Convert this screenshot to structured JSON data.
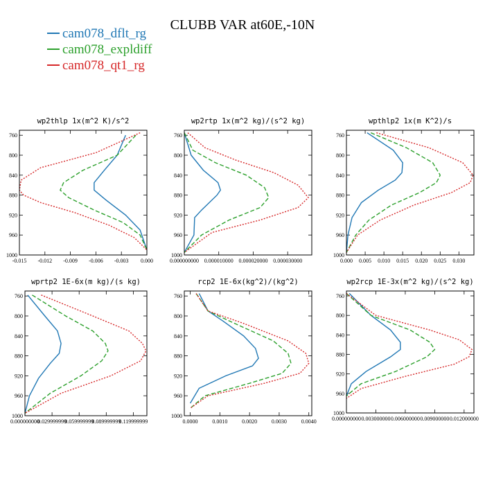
{
  "title": "CLUBB VAR at60E,-10N",
  "legend": [
    {
      "name": "cam078_dflt_rg",
      "color": "#1f77b4",
      "dash": "solid"
    },
    {
      "name": "cam078_expldiff",
      "color": "#2ca02c",
      "dash": "dashed"
    },
    {
      "name": "cam078_qt1_rg",
      "color": "#d62728",
      "dash": "dotted"
    }
  ],
  "chart_data": [
    {
      "type": "line",
      "title": "wp2thlp  1x(m^2 K)/s^2",
      "xlim": [
        -0.015,
        0.0
      ],
      "ylim": [
        1000,
        750
      ],
      "xticks": [
        -0.015,
        -0.012,
        -0.009,
        -0.006,
        -0.003,
        0.0
      ],
      "xtick_labels": [
        "-0.015",
        "-0.012",
        "-0.009",
        "-0.006",
        "-0.003",
        "0.000"
      ],
      "yticks": [
        760,
        800,
        840,
        880,
        920,
        960,
        1000
      ],
      "ytick_labels": [
        "760",
        "800",
        "840",
        "880",
        "920",
        "960",
        "1000"
      ],
      "series": [
        {
          "name": "cam078_dflt_rg",
          "x": [
            -0.0025,
            -0.0035,
            -0.005,
            -0.0062,
            -0.0062,
            -0.0048,
            -0.0025,
            -0.0008,
            0.0
          ],
          "y": [
            760,
            800,
            830,
            855,
            870,
            890,
            920,
            950,
            990
          ]
        },
        {
          "name": "cam078_expldiff",
          "x": [
            -0.0013,
            -0.0035,
            -0.0075,
            -0.0098,
            -0.0102,
            -0.0092,
            -0.0062,
            -0.0028,
            -0.0008,
            0.0
          ],
          "y": [
            760,
            800,
            830,
            855,
            870,
            885,
            910,
            935,
            960,
            990
          ]
        },
        {
          "name": "cam078_qt1_rg",
          "x": [
            -0.0008,
            -0.006,
            -0.0125,
            -0.0148,
            -0.015,
            -0.0145,
            -0.0125,
            -0.0085,
            -0.0045,
            -0.0015,
            0.0
          ],
          "y": [
            755,
            795,
            825,
            850,
            870,
            880,
            895,
            915,
            940,
            965,
            990
          ]
        }
      ]
    },
    {
      "type": "line",
      "title": "wp2rtp  1x(m^2 kg)/(s^2 kg)",
      "xlim": [
        0.0,
        3.7e-05
      ],
      "ylim": [
        1000,
        750
      ],
      "xticks": [
        0.0,
        1e-05,
        2e-05,
        3e-05
      ],
      "xtick_labels": [
        "0.000000000",
        "0.000010000",
        "0.000020000",
        "0.000030000"
      ],
      "yticks": [
        760,
        800,
        840,
        880,
        920,
        960,
        1000
      ],
      "ytick_labels": [
        "760",
        "800",
        "840",
        "880",
        "920",
        "960",
        "1000"
      ],
      "series": [
        {
          "name": "cam078_dflt_rg",
          "x": [
            0.0,
            2e-06,
            5.5e-06,
            9.8e-06,
            1.05e-05,
            9.5e-06,
            5e-06,
            3e-06,
            2.8e-06,
            0.0
          ],
          "y": [
            755,
            800,
            830,
            855,
            870,
            880,
            910,
            925,
            960,
            995
          ]
        },
        {
          "name": "cam078_expldiff",
          "x": [
            0.0,
            2.5e-06,
            9e-06,
            1.8e-05,
            2.33e-05,
            2.45e-05,
            2.2e-05,
            1.3e-05,
            5e-06,
            0.0
          ],
          "y": [
            755,
            790,
            815,
            840,
            865,
            885,
            905,
            930,
            960,
            995
          ]
        },
        {
          "name": "cam078_qt1_rg",
          "x": [
            1e-06,
            6e-06,
            1.5e-05,
            2.6e-05,
            3.3e-05,
            3.6e-05,
            3.3e-05,
            2.2e-05,
            8e-06,
            0.0
          ],
          "y": [
            755,
            785,
            810,
            835,
            860,
            885,
            905,
            930,
            955,
            995
          ]
        }
      ]
    },
    {
      "type": "line",
      "title": "wpthlp2  1x(m K^2)/s",
      "xlim": [
        0.0,
        0.034
      ],
      "ylim": [
        1000,
        750
      ],
      "xticks": [
        0.0,
        0.005,
        0.01,
        0.015,
        0.02,
        0.025,
        0.03
      ],
      "xtick_labels": [
        "0.000",
        "0.005",
        "0.010",
        "0.015",
        "0.020",
        "0.025",
        "0.030"
      ],
      "yticks": [
        760,
        800,
        840,
        880,
        920,
        960,
        1000
      ],
      "ytick_labels": [
        "760",
        "800",
        "840",
        "880",
        "920",
        "960",
        "1000"
      ],
      "series": [
        {
          "name": "cam078_dflt_rg",
          "x": [
            0.0055,
            0.0125,
            0.015,
            0.0148,
            0.013,
            0.0085,
            0.004,
            0.0015,
            0.0004,
            0.0
          ],
          "y": [
            755,
            790,
            815,
            835,
            850,
            870,
            895,
            925,
            960,
            995
          ]
        },
        {
          "name": "cam078_expldiff",
          "x": [
            0.0065,
            0.016,
            0.023,
            0.025,
            0.024,
            0.0195,
            0.012,
            0.006,
            0.0025,
            0.0
          ],
          "y": [
            755,
            785,
            815,
            840,
            855,
            875,
            900,
            930,
            960,
            995
          ]
        },
        {
          "name": "cam078_qt1_rg",
          "x": [
            0.008,
            0.022,
            0.031,
            0.0338,
            0.033,
            0.028,
            0.018,
            0.009,
            0.003,
            0.0
          ],
          "y": [
            755,
            785,
            815,
            840,
            855,
            875,
            900,
            930,
            960,
            995
          ]
        }
      ]
    },
    {
      "type": "line",
      "title": "wprtp2  1E-6x(m kg)/(s kg)",
      "xlim": [
        0.0,
        0.135
      ],
      "ylim": [
        1000,
        750
      ],
      "xticks": [
        0.0,
        0.03,
        0.06,
        0.09,
        0.12
      ],
      "xtick_labels": [
        "0.000000000",
        "0.029999999",
        "0.059999999",
        "0.089999999",
        "0.119999999"
      ],
      "yticks": [
        760,
        800,
        840,
        880,
        920,
        960,
        1000
      ],
      "ytick_labels": [
        "760",
        "800",
        "840",
        "880",
        "920",
        "960",
        "1000"
      ],
      "series": [
        {
          "name": "cam078_dflt_rg",
          "x": [
            0.003,
            0.022,
            0.036,
            0.04,
            0.038,
            0.028,
            0.015,
            0.005,
            0.0
          ],
          "y": [
            758,
            800,
            830,
            855,
            875,
            895,
            925,
            960,
            995
          ]
        },
        {
          "name": "cam078_expldiff",
          "x": [
            0.008,
            0.045,
            0.075,
            0.089,
            0.092,
            0.085,
            0.062,
            0.028,
            0.0
          ],
          "y": [
            758,
            800,
            830,
            855,
            870,
            890,
            920,
            955,
            995
          ]
        },
        {
          "name": "cam078_qt1_rg",
          "x": [
            0.018,
            0.075,
            0.115,
            0.13,
            0.134,
            0.128,
            0.095,
            0.04,
            0.0
          ],
          "y": [
            758,
            800,
            830,
            855,
            870,
            890,
            920,
            955,
            995
          ]
        }
      ]
    },
    {
      "type": "line",
      "title": "rcp2  1E-6x(kg^2)/(kg^2)",
      "xlim": [
        -0.0002,
        0.0041
      ],
      "ylim": [
        1000,
        750
      ],
      "xticks": [
        0.0,
        0.001,
        0.002,
        0.003,
        0.004
      ],
      "xtick_labels": [
        "0.0000",
        "0.0010",
        "0.0020",
        "0.0030",
        "0.0040"
      ],
      "yticks": [
        760,
        800,
        840,
        880,
        920,
        960,
        1000
      ],
      "ytick_labels": [
        "760",
        "800",
        "840",
        "880",
        "920",
        "960",
        "1000"
      ],
      "series": [
        {
          "name": "cam078_dflt_rg",
          "x": [
            0.0003,
            0.0006,
            0.0011,
            0.0018,
            0.0022,
            0.0023,
            0.0021,
            0.0012,
            0.0003,
            0.0
          ],
          "y": [
            755,
            790,
            810,
            840,
            865,
            885,
            900,
            920,
            945,
            975
          ]
        },
        {
          "name": "cam078_expldiff",
          "x": [
            0.0002,
            0.0006,
            0.0015,
            0.0028,
            0.0033,
            0.0034,
            0.0031,
            0.002,
            0.0005,
            0.0
          ],
          "y": [
            755,
            790,
            815,
            850,
            875,
            895,
            915,
            935,
            960,
            985
          ]
        },
        {
          "name": "cam078_qt1_rg",
          "x": [
            0.0002,
            0.0006,
            0.0018,
            0.0033,
            0.0039,
            0.004,
            0.0037,
            0.0025,
            0.0006,
            0.0
          ],
          "y": [
            755,
            790,
            815,
            850,
            875,
            895,
            915,
            935,
            960,
            985
          ]
        }
      ]
    },
    {
      "type": "line",
      "title": "wp2rcp  1E-3x(m^2 kg)/(s^2 kg)",
      "xlim": [
        0.0,
        0.013
      ],
      "ylim": [
        1000,
        750
      ],
      "xticks": [
        0.0,
        0.003,
        0.006,
        0.009,
        0.012
      ],
      "xtick_labels": [
        "0.000000000",
        "0.003000000",
        "0.006000000",
        "0.009000000",
        "0.012000000"
      ],
      "yticks": [
        760,
        800,
        840,
        880,
        920,
        960,
        1000
      ],
      "ytick_labels": [
        "760",
        "800",
        "840",
        "880",
        "920",
        "960",
        "1000"
      ],
      "series": [
        {
          "name": "cam078_dflt_rg",
          "x": [
            0.0003,
            0.0025,
            0.0045,
            0.0055,
            0.0055,
            0.0045,
            0.002,
            0.0005,
            0.0
          ],
          "y": [
            755,
            800,
            830,
            855,
            870,
            885,
            915,
            940,
            965
          ]
        },
        {
          "name": "cam078_expldiff",
          "x": [
            0.0,
            0.0025,
            0.0065,
            0.0085,
            0.009,
            0.0082,
            0.005,
            0.0015,
            0.0
          ],
          "y": [
            755,
            800,
            830,
            855,
            870,
            885,
            915,
            940,
            965
          ]
        },
        {
          "name": "cam078_qt1_rg",
          "x": [
            0.0,
            0.003,
            0.0085,
            0.0115,
            0.0128,
            0.0125,
            0.011,
            0.006,
            0.0015,
            0.0
          ],
          "y": [
            755,
            800,
            830,
            850,
            870,
            885,
            900,
            925,
            950,
            970
          ]
        }
      ]
    }
  ]
}
